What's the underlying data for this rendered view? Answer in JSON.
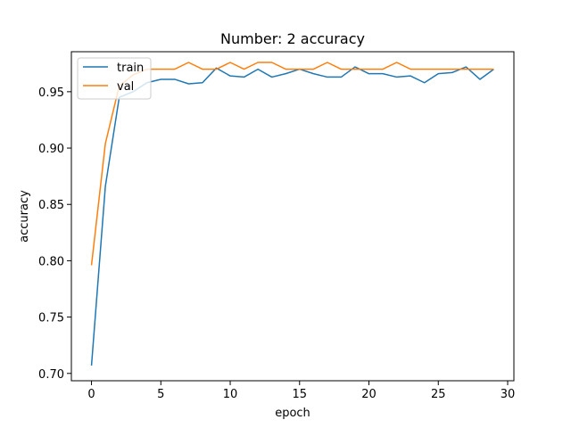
{
  "chart_data": {
    "type": "line",
    "title": "Number: 2 accuracy",
    "xlabel": "epoch",
    "ylabel": "accuracy",
    "xlim": [
      -1.45,
      30.45
    ],
    "ylim": [
      0.6935,
      0.9855
    ],
    "xticks": [
      0,
      5,
      10,
      15,
      20,
      25,
      30
    ],
    "yticks": [
      0.7,
      0.75,
      0.8,
      0.85,
      0.9,
      0.95
    ],
    "ytick_labels": [
      "0.70",
      "0.75",
      "0.80",
      "0.85",
      "0.90",
      "0.95"
    ],
    "grid": false,
    "legend_position": "upper-left",
    "x": [
      0,
      1,
      2,
      3,
      4,
      5,
      6,
      7,
      8,
      9,
      10,
      11,
      12,
      13,
      14,
      15,
      16,
      17,
      18,
      19,
      20,
      21,
      22,
      23,
      24,
      25,
      26,
      27,
      28,
      29
    ],
    "series": [
      {
        "name": "train",
        "color": "#1f77b4",
        "values": [
          0.707,
          0.866,
          0.945,
          0.95,
          0.958,
          0.961,
          0.961,
          0.957,
          0.958,
          0.971,
          0.964,
          0.963,
          0.97,
          0.963,
          0.966,
          0.97,
          0.966,
          0.963,
          0.963,
          0.972,
          0.966,
          0.966,
          0.963,
          0.964,
          0.958,
          0.966,
          0.967,
          0.972,
          0.961,
          0.97
        ]
      },
      {
        "name": "val",
        "color": "#ff7f0e",
        "values": [
          0.796,
          0.904,
          0.955,
          0.965,
          0.97,
          0.97,
          0.97,
          0.976,
          0.97,
          0.97,
          0.976,
          0.97,
          0.976,
          0.976,
          0.97,
          0.97,
          0.97,
          0.976,
          0.97,
          0.97,
          0.97,
          0.97,
          0.976,
          0.97,
          0.97,
          0.97,
          0.97,
          0.97,
          0.97,
          0.97
        ]
      }
    ]
  }
}
